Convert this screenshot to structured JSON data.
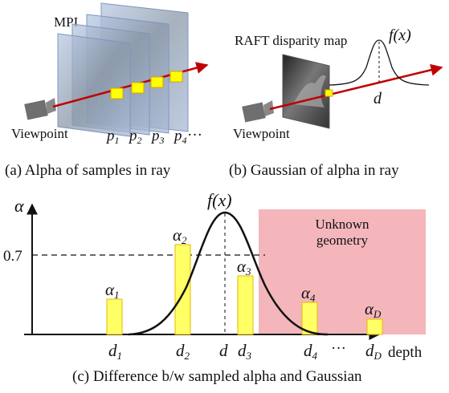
{
  "panel_a": {
    "mpi_label": "MPI",
    "viewpoint_label": "Viewpoint",
    "plane_labels": [
      "p",
      "p",
      "p",
      "p"
    ],
    "plane_subs": [
      "1",
      "2",
      "3",
      "4"
    ],
    "ellipsis": "···",
    "caption": "(a) Alpha of samples in ray"
  },
  "panel_b": {
    "map_label": "RAFT disparity map",
    "fx_label": "f(x)",
    "d_label": "d",
    "viewpoint_label": "Viewpoint",
    "caption": "(b) Gaussian of alpha in ray"
  },
  "panel_c": {
    "alpha_axis": "α",
    "fx_label": "f(x)",
    "threshold_label": "0.7",
    "unknown_label_line1": "Unknown",
    "unknown_label_line2": "geometry",
    "x_axis_label": "depth",
    "x_ticks": [
      {
        "base": "d",
        "sub": "1"
      },
      {
        "base": "d",
        "sub": "2"
      },
      {
        "base": "d",
        "sub": ""
      },
      {
        "base": "d",
        "sub": "3"
      },
      {
        "base": "d",
        "sub": "4"
      },
      {
        "base": "···",
        "sub": ""
      },
      {
        "base": "d",
        "sub": "D"
      }
    ],
    "bar_labels": [
      {
        "base": "α",
        "sub": "1"
      },
      {
        "base": "α",
        "sub": "2"
      },
      {
        "base": "α",
        "sub": "3"
      },
      {
        "base": "α",
        "sub": "4"
      },
      {
        "base": "α",
        "sub": "D"
      }
    ],
    "caption": "(c) Difference b/w sampled alpha and Gaussian"
  },
  "colors": {
    "ray": "#c00000",
    "bar_fill": "#ffff66",
    "bar_stroke": "#e6b800",
    "unknown_region": "#f4b6bb",
    "plane": "#9fb4d6"
  }
}
